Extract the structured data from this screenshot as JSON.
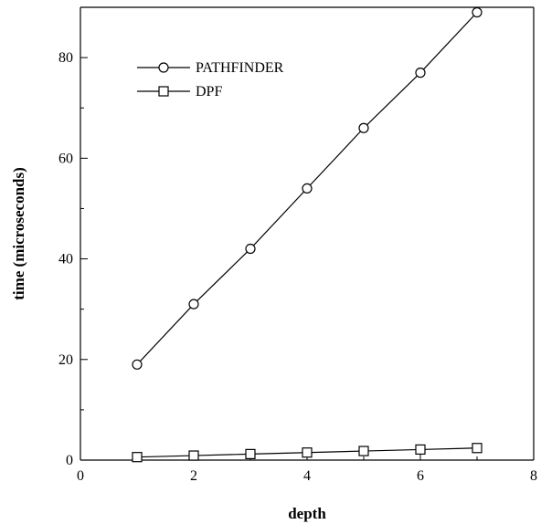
{
  "chart_data": {
    "type": "line",
    "title": "",
    "xlabel": "depth",
    "ylabel": "time (microseconds)",
    "xlim": [
      0,
      8
    ],
    "ylim": [
      0,
      90
    ],
    "xticks": [
      0,
      2,
      4,
      6,
      8
    ],
    "yticks": [
      0,
      20,
      40,
      60,
      80
    ],
    "x_minor_step": 1,
    "y_minor_step": 10,
    "grid": false,
    "legend_position": "top-left",
    "series": [
      {
        "name": "PATHFINDER",
        "marker": "circle",
        "x": [
          1,
          2,
          3,
          4,
          5,
          6,
          7
        ],
        "y": [
          19,
          31,
          42,
          54,
          66,
          77,
          89
        ]
      },
      {
        "name": "DPF",
        "marker": "square",
        "x": [
          1,
          2,
          3,
          4,
          5,
          6,
          7
        ],
        "y": [
          0.6,
          0.9,
          1.2,
          1.5,
          1.8,
          2.1,
          2.4
        ]
      }
    ]
  }
}
